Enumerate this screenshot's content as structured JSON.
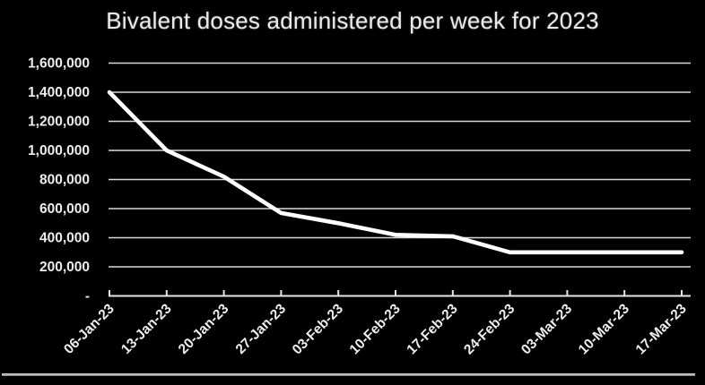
{
  "chart_data": {
    "type": "line",
    "title": "Bivalent doses administered per week for 2023",
    "categories": [
      "06-Jan-23",
      "13-Jan-23",
      "20-Jan-23",
      "27-Jan-23",
      "03-Feb-23",
      "10-Feb-23",
      "17-Feb-23",
      "24-Feb-23",
      "03-Mar-23",
      "10-Mar-23",
      "17-Mar-23"
    ],
    "values": [
      1400000,
      1000000,
      820000,
      570000,
      500000,
      420000,
      410000,
      300000,
      300000,
      300000,
      300000
    ],
    "xlabel": "",
    "ylabel": "",
    "ylim": [
      0,
      1600000
    ],
    "ytick_step": 200000,
    "ytick_labels_bottom_to_top": [
      "-",
      "200,000",
      "400,000",
      "600,000",
      "800,000",
      "1,000,000",
      "1,200,000",
      "1,400,000",
      "1,600,000"
    ],
    "grid": true,
    "legend_position": "none",
    "colors": {
      "background": "#000000",
      "line": "#ffffff",
      "gridline": "#dadada",
      "axis": "#e6e6e6",
      "text": "#ededed",
      "title_text": "#ebebeb",
      "bottom_border": "#9c9c9c"
    }
  }
}
